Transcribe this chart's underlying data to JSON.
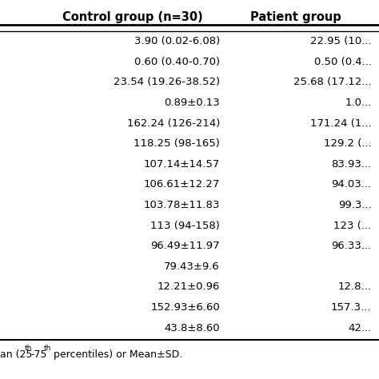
{
  "header": [
    "Control group (n=30)",
    "Patient group"
  ],
  "rows": [
    [
      "3.90 (0.02-6.08)",
      "22.95 (10..."
    ],
    [
      "0.60 (0.40-0.70)",
      "0.50 (0.4..."
    ],
    [
      "23.54 (19.26-38.52)",
      "25.68 (17.12..."
    ],
    [
      "0.89±0.13",
      "1.0..."
    ],
    [
      "162.24 (126-214)",
      "171.24 (1..."
    ],
    [
      "118.25 (98-165)",
      "129.2 (..."
    ],
    [
      "107.14±14.57",
      "83.93..."
    ],
    [
      "106.61±12.27",
      "94.03..."
    ],
    [
      "103.78±11.83",
      "99.3..."
    ],
    [
      "113 (94-158)",
      "123 (..."
    ],
    [
      "96.49±11.97",
      "96.33..."
    ],
    [
      "79.43±9.6",
      ""
    ],
    [
      "12.21±0.96",
      "12.8..."
    ],
    [
      "152.93±6.60",
      "157.3..."
    ],
    [
      "43.8±8.60",
      "42..."
    ]
  ],
  "bg_color": "#ffffff",
  "line_color": "#000000",
  "font_size": 9.5,
  "header_font_size": 10.5,
  "fig_width": 4.74,
  "fig_height": 4.74,
  "dpi": 100
}
